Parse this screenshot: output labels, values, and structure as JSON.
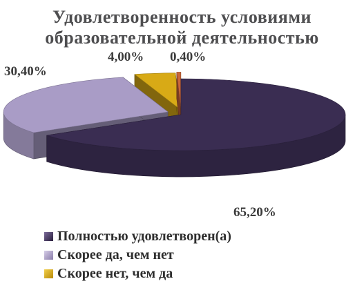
{
  "chart_data": {
    "type": "pie",
    "title_lines": [
      "Удовлетворенность условиями",
      "образовательной деятельностью"
    ],
    "slices": [
      {
        "name": "Полностью удовлетворен(а)",
        "value": 65.2,
        "label": "65,20%",
        "color": "#3a2d52"
      },
      {
        "name": "Скорее да, чем нет",
        "value": 30.4,
        "label": "30,40%",
        "color": "#a99cc6"
      },
      {
        "name": "Скорее нет, чем да",
        "value": 4.0,
        "label": "4,00%",
        "color": "#d8aa16"
      },
      {
        "name": "",
        "value": 0.4,
        "label": "0,40%",
        "color": "#c9663a"
      }
    ],
    "style": "3d-exploded",
    "legend": {
      "position": "bottom-left",
      "entries": [
        "Полностью удовлетворен(а)",
        "Скорее да, чем нет",
        "Скорее нет, чем да"
      ]
    }
  }
}
